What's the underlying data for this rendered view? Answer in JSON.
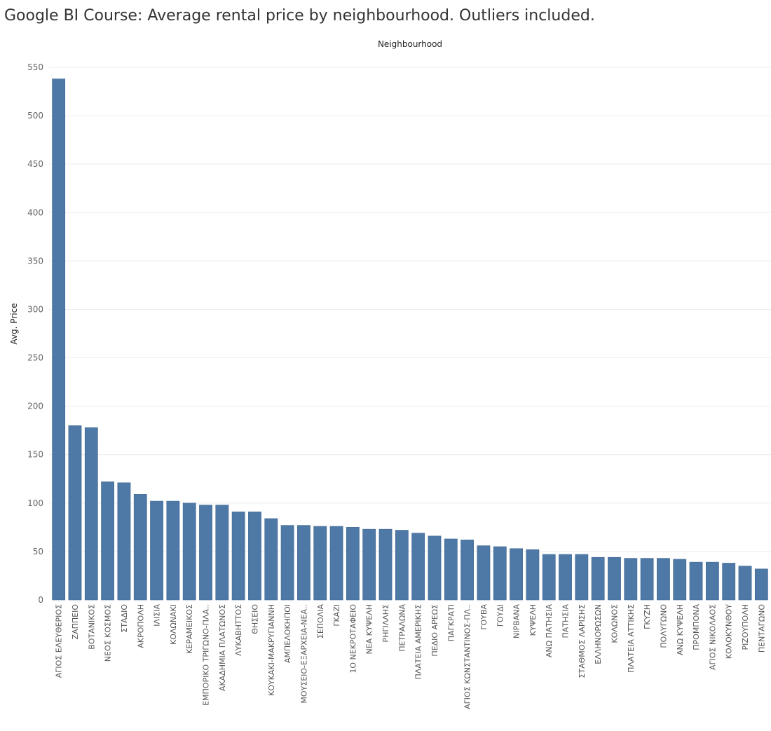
{
  "title": "Google BI Course: Average rental price by neighbourhood. Outliers included.",
  "chart_data": {
    "type": "bar",
    "title": "Google BI Course: Average rental price by neighbourhood. Outliers included.",
    "xlabel": "Neighbourhood",
    "ylabel": "Avg. Price",
    "ylim": [
      0,
      550
    ],
    "yticks": [
      0,
      50,
      100,
      150,
      200,
      250,
      300,
      350,
      400,
      450,
      500,
      550
    ],
    "grid": true,
    "bar_color": "#4e79a7",
    "categories": [
      "ΑΓΙΟΣ ΕΛΕΥΘΕΡΙΟΣ",
      "ΖΑΠΠΕΙΟ",
      "ΒΟΤΑΝΙΚΟΣ",
      "ΝΕΟΣ ΚΟΣΜΟΣ",
      "ΣΤΑΔΙΟ",
      "ΑΚΡΟΠΟΛΗ",
      "ΙΛΙΣΙΑ",
      "ΚΟΛΩΝΑΚΙ",
      "ΚΕΡΑΜΕΙΚΟΣ",
      "ΕΜΠΟΡΙΚΟ ΤΡΙΓΩΝΟ-ΠΛΑ..",
      "ΑΚΑΔΗΜΙΑ ΠΛΑΤΩΝΟΣ",
      "ΛΥΚΑΒΗΤΤΟΣ",
      "ΘΗΣΕΙΟ",
      "ΚΟΥΚΑΚΙ-ΜΑΚΡΥΓΙΑΝΝΗ",
      "ΑΜΠΕΛΟΚΗΠΟΙ",
      "ΜΟΥΣΕΙΟ-ΕΞΑΡΧΕΙΑ-ΝΕΑ..",
      "ΣΕΠΟΛΙΑ",
      "ΓΚΑΖΙ",
      "1Ο ΝΕΚΡΟΤΑΦΕΙΟ",
      "ΝΕΑ ΚΥΨΕΛΗ",
      "ΡΗΓΙΛΛΗΣ",
      "ΠΕΤΡΑΛΩΝΑ",
      "ΠΛΑΤΕΙΑ ΑΜΕΡΙΚΗΣ",
      "ΠΕΔΙΟ ΑΡΕΩΣ",
      "ΠΑΓΚΡΑΤΙ",
      "ΑΓΙΟΣ ΚΩΝΣΤΑΝΤΙΝΟΣ-ΠΛ..",
      "ΓΟΥΒΑ",
      "ΓΟΥΔΙ",
      "ΝΙΡΒΑΝΑ",
      "ΚΥΨΕΛΗ",
      "ΑΝΩ ΠΑΤΗΣΙΑ",
      "ΠΑΤΗΣΙΑ",
      "ΣΤΑΘΜΟΣ ΛΑΡΙΣΗΣ",
      "ΕΛΛΗΝΟΡΩΣΩΝ",
      "ΚΟΛΩΝΟΣ",
      "ΠΛΑΤΕΙΑ ΑΤΤΙΚΗΣ",
      "ΓΚΥΖΗ",
      "ΠΟΛΥΓΩΝΟ",
      "ΑΝΩ ΚΥΨΕΛΗ",
      "ΠΡΟΜΠΟΝΑ",
      "ΑΓΙΟΣ ΝΙΚΟΛΑΟΣ",
      "ΚΟΛΟΚΥΝΘΟΥ",
      "ΡΙΖΟΥΠΟΛΗ",
      "ΠΕΝΤΑΓΩΝΟ"
    ],
    "values": [
      538,
      180,
      178,
      122,
      121,
      109,
      102,
      102,
      100,
      98,
      98,
      91,
      91,
      84,
      77,
      77,
      76,
      76,
      75,
      73,
      73,
      72,
      69,
      66,
      63,
      62,
      56,
      55,
      53,
      52,
      47,
      47,
      47,
      44,
      44,
      43,
      43,
      43,
      42,
      39,
      39,
      38,
      35,
      32
    ]
  }
}
